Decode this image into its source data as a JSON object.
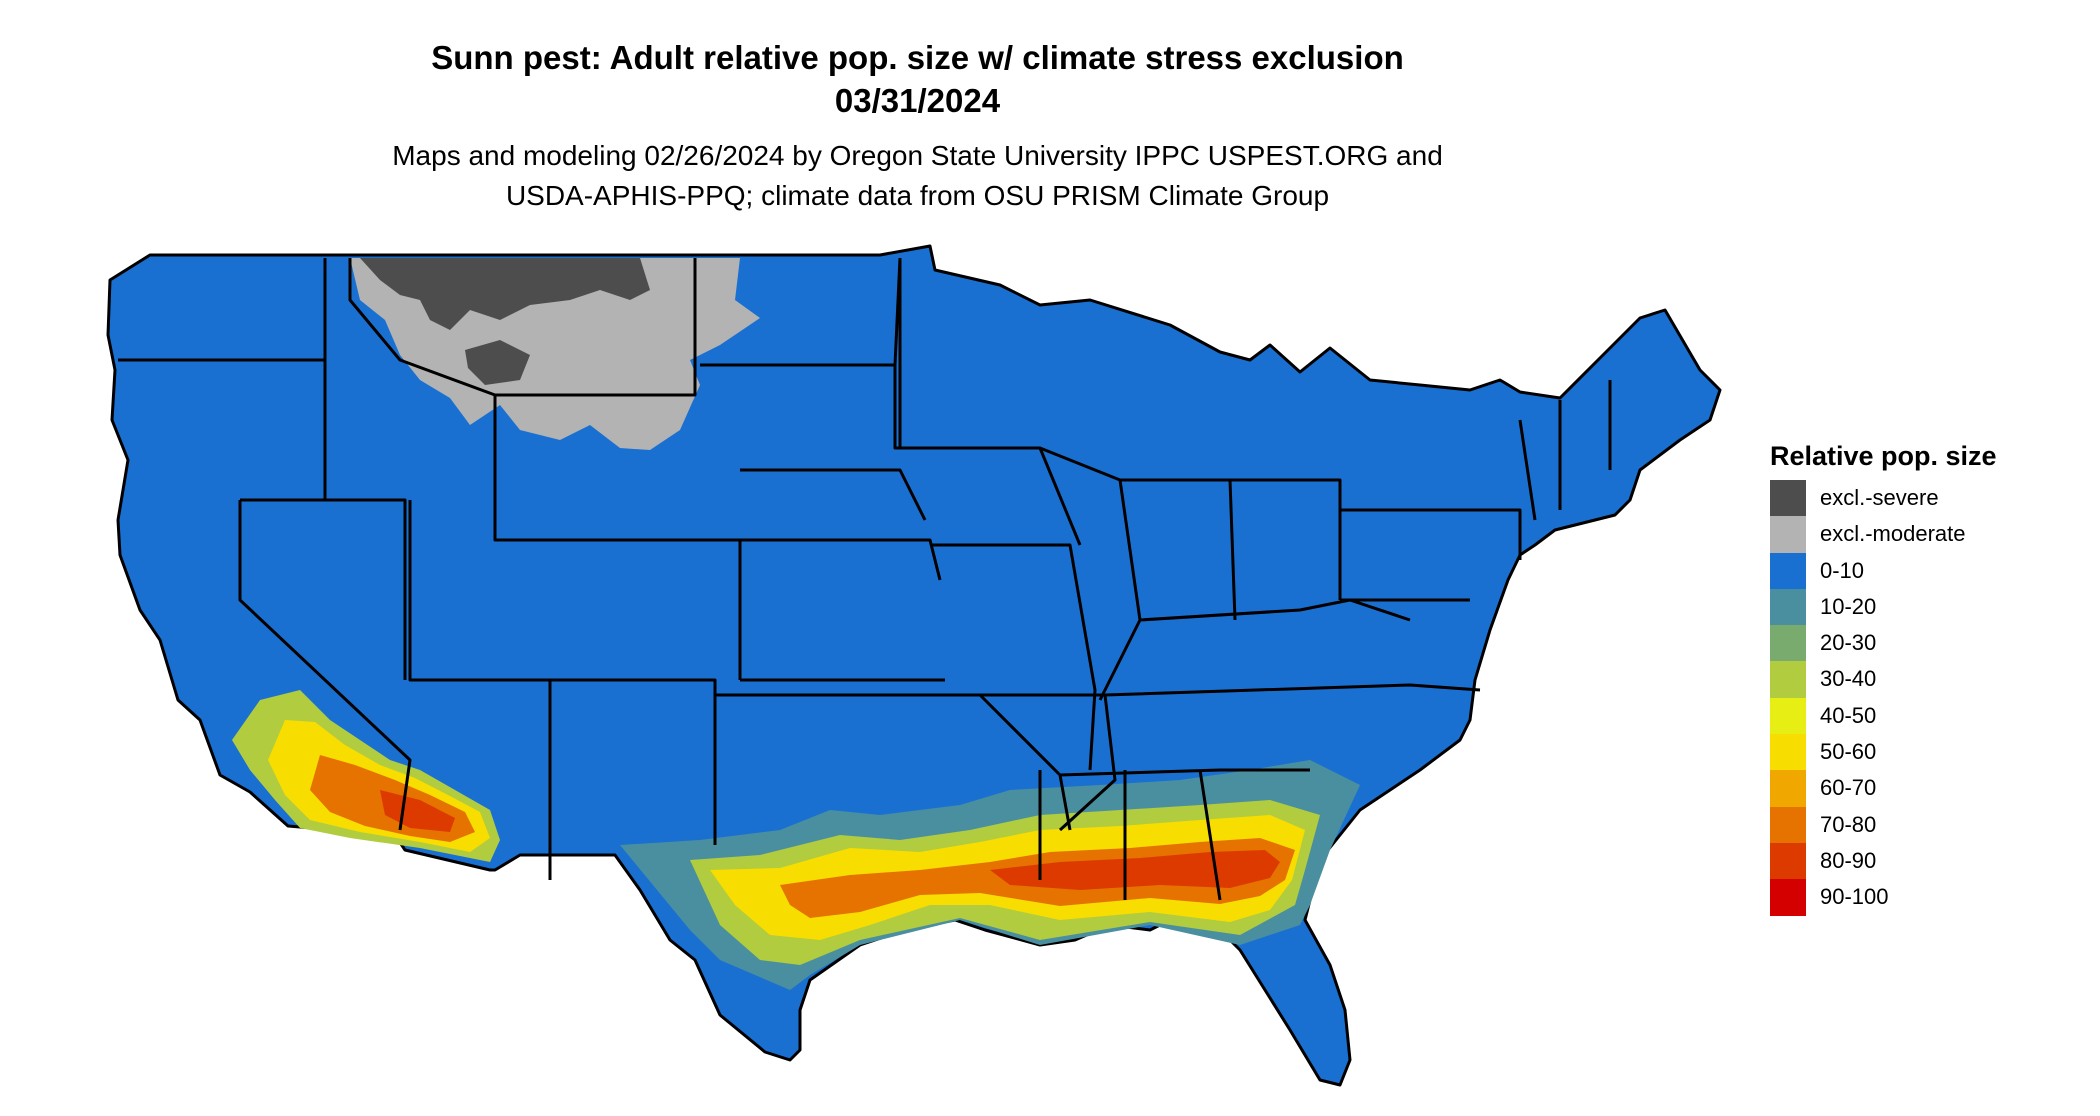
{
  "title": {
    "line1": "Sunn pest: Adult relative pop. size w/ climate stress exclusion",
    "line2": "03/31/2024"
  },
  "subtitle": {
    "line1": "Maps and modeling 02/26/2024 by Oregon State University IPPC USPEST.ORG and",
    "line2": "USDA-APHIS-PPQ; climate data from OSU PRISM Climate Group"
  },
  "legend": {
    "title": "Relative pop. size",
    "items": [
      {
        "label": "excl.-severe",
        "color": "#4d4d4d"
      },
      {
        "label": "excl.-moderate",
        "color": "#b3b3b3"
      },
      {
        "label": "0-10",
        "color": "#1a70d1"
      },
      {
        "label": "10-20",
        "color": "#4a8f9f"
      },
      {
        "label": "20-30",
        "color": "#7aab6e"
      },
      {
        "label": "30-40",
        "color": "#b2cc3f"
      },
      {
        "label": "40-50",
        "color": "#e6ee13"
      },
      {
        "label": "50-60",
        "color": "#f8dd00"
      },
      {
        "label": "60-70",
        "color": "#f0a800"
      },
      {
        "label": "70-80",
        "color": "#e67300"
      },
      {
        "label": "80-90",
        "color": "#dd3a00"
      },
      {
        "label": "90-100",
        "color": "#d40000"
      }
    ]
  },
  "map": {
    "region": "contiguous-united-states",
    "background_class": "0-10"
  }
}
